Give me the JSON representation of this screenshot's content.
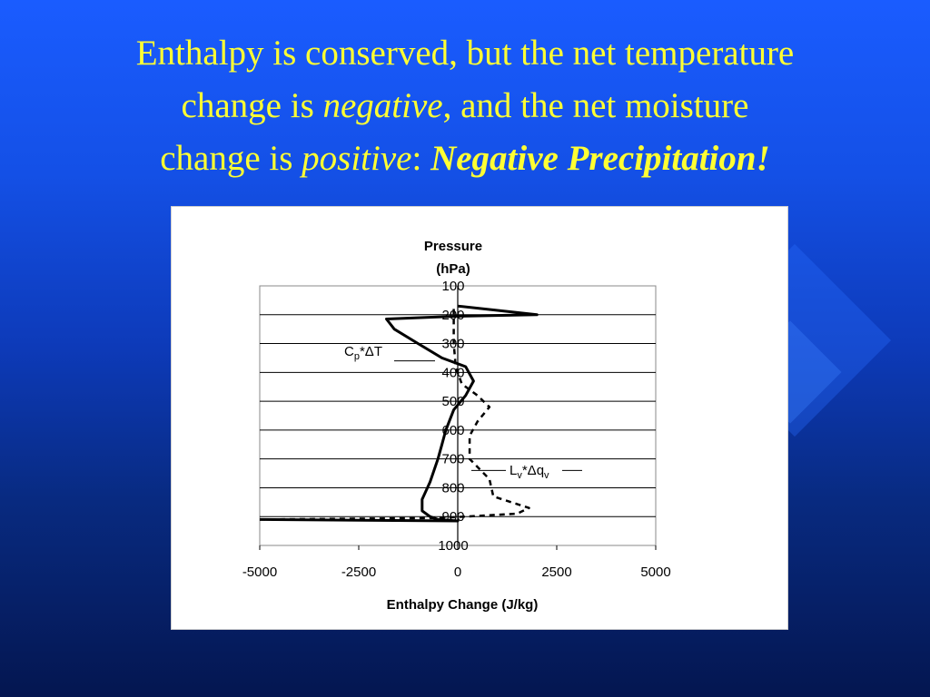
{
  "slide": {
    "title_line1": "Enthalpy is conserved, but the net temperature",
    "title_line2_a": "change is ",
    "title_line2_b": "negative",
    "title_line2_c": ", and the net moisture",
    "title_line3_a": "change is ",
    "title_line3_b": "positive",
    "title_line3_c": ":  ",
    "title_line3_d": "Negative Precipitation!",
    "title_color": "#ffff33",
    "background_color": "#1450e6"
  },
  "chart_data": {
    "type": "line",
    "ylabel_line1": "Pressure",
    "ylabel_line2": "(hPa)",
    "xlabel": "Enthalpy Change (J/kg)",
    "xlim": [
      -5000,
      5000
    ],
    "ylim": [
      100,
      1000
    ],
    "y_inverted": true,
    "grid": true,
    "x_ticks": [
      "-5000",
      "-2500",
      "0",
      "2500",
      "5000"
    ],
    "y_ticks": [
      "100",
      "200",
      "300",
      "400",
      "500",
      "600",
      "700",
      "800",
      "900",
      "1000"
    ],
    "series": [
      {
        "name": "Cp*ΔT",
        "label_main": "C",
        "label_sub": "p",
        "label_rest": "*ΔT",
        "style": "solid",
        "points": [
          [
            0,
            170
          ],
          [
            2000,
            200
          ],
          [
            0,
            205
          ],
          [
            -1800,
            215
          ],
          [
            -1600,
            250
          ],
          [
            -1000,
            300
          ],
          [
            -400,
            350
          ],
          [
            200,
            380
          ],
          [
            400,
            430
          ],
          [
            200,
            480
          ],
          [
            -100,
            530
          ],
          [
            -300,
            600
          ],
          [
            -400,
            650
          ],
          [
            -500,
            700
          ],
          [
            -700,
            780
          ],
          [
            -900,
            840
          ],
          [
            -900,
            880
          ],
          [
            -700,
            900
          ],
          [
            -500,
            910
          ],
          [
            0,
            915
          ],
          [
            -5000,
            910
          ]
        ]
      },
      {
        "name": "Lv*Δqv",
        "label_main": "L",
        "label_sub": "v",
        "label_rest": "*Δq",
        "label_sub2": "v",
        "style": "dashed",
        "points": [
          [
            -100,
            180
          ],
          [
            -100,
            300
          ],
          [
            -50,
            380
          ],
          [
            100,
            440
          ],
          [
            500,
            480
          ],
          [
            800,
            520
          ],
          [
            500,
            570
          ],
          [
            300,
            620
          ],
          [
            300,
            700
          ],
          [
            800,
            770
          ],
          [
            900,
            830
          ],
          [
            1800,
            870
          ],
          [
            1500,
            890
          ],
          [
            200,
            900
          ],
          [
            -500,
            905
          ],
          [
            -5000,
            910
          ]
        ]
      }
    ]
  }
}
